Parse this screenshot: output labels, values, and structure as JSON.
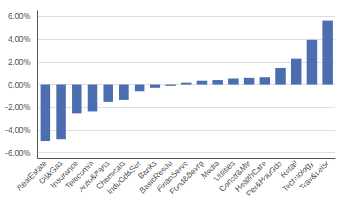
{
  "chart_data": {
    "type": "bar",
    "categories": [
      "RealEstate",
      "Oil&Gas",
      "Insurance",
      "Telecomm",
      "Auto&Parts",
      "Chemicals",
      "InduGd&Ser",
      "Banks",
      "BasicResou",
      "FinanServc",
      "Food&Bevrg",
      "Media",
      "Utilities",
      "Constr&Mtr",
      "HealthCare",
      "Per&HouGds",
      "Retail",
      "Technology",
      "Trav&Leisr"
    ],
    "values": [
      -4.98,
      -4.8,
      -2.55,
      -2.4,
      -1.5,
      -1.35,
      -0.6,
      -0.25,
      -0.1,
      0.15,
      0.3,
      0.35,
      0.55,
      0.6,
      0.65,
      1.45,
      2.25,
      3.95,
      5.6
    ],
    "color": "#4C6DAF",
    "ylim": [
      -6.5,
      6.5
    ],
    "yticks": [
      {
        "value": -6.0,
        "label": "-6,00%"
      },
      {
        "value": -4.0,
        "label": "-4,00%"
      },
      {
        "value": -2.0,
        "label": "-2,00%"
      },
      {
        "value": 0.0,
        "label": "0,00%"
      },
      {
        "value": 2.0,
        "label": "2,00%"
      },
      {
        "value": 4.0,
        "label": "4,00%"
      },
      {
        "value": 6.0,
        "label": "6,00%"
      }
    ],
    "grid": true
  }
}
